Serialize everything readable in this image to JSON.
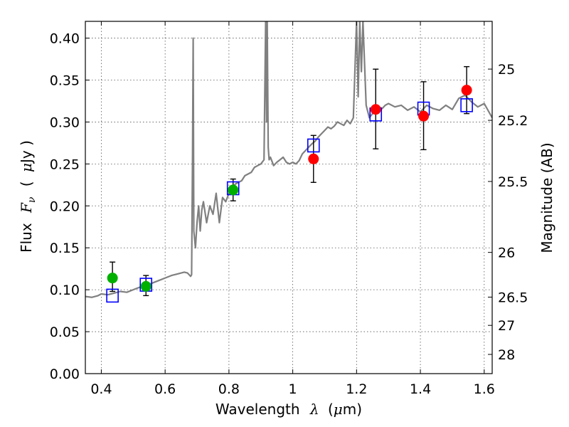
{
  "chart_data": {
    "type": "scatter",
    "xlabel_text": "Wavelength",
    "xlabel_symbol": "λ",
    "xlabel_unit_open": "(",
    "xlabel_unit_mu": "μ",
    "xlabel_unit_rest": "m)",
    "ylabel_text": "Flux",
    "ylabel_symbol": "F",
    "ylabel_sub": "ν",
    "ylabel_unit_open": "(",
    "ylabel_unit_mu": "μ",
    "ylabel_unit_rest": "Jy )",
    "y2label": "Magnitude (AB)",
    "xlim": [
      0.35,
      1.625
    ],
    "ylim": [
      0.0,
      0.42
    ],
    "grid": true,
    "x_ticks": [
      {
        "v": 0.4,
        "label": "0.4"
      },
      {
        "v": 0.6,
        "label": "0.6"
      },
      {
        "v": 0.8,
        "label": "0.8"
      },
      {
        "v": 1.0,
        "label": "1"
      },
      {
        "v": 1.2,
        "label": "1.2"
      },
      {
        "v": 1.4,
        "label": "1.4"
      },
      {
        "v": 1.6,
        "label": "1.6"
      }
    ],
    "y_ticks": [
      {
        "v": 0.0,
        "label": "0.00"
      },
      {
        "v": 0.05,
        "label": "0.05"
      },
      {
        "v": 0.1,
        "label": "0.10"
      },
      {
        "v": 0.15,
        "label": "0.15"
      },
      {
        "v": 0.2,
        "label": "0.20"
      },
      {
        "v": 0.25,
        "label": "0.25"
      },
      {
        "v": 0.3,
        "label": "0.30"
      },
      {
        "v": 0.35,
        "label": "0.35"
      },
      {
        "v": 0.4,
        "label": "0.40"
      }
    ],
    "y2_ticks": [
      {
        "mag": 25,
        "label": "25"
      },
      {
        "mag": 25.2,
        "label": "25.2"
      },
      {
        "mag": 25.5,
        "label": "25.5"
      },
      {
        "mag": 26,
        "label": "26"
      },
      {
        "mag": 26.5,
        "label": "26.5"
      },
      {
        "mag": 27,
        "label": "27"
      },
      {
        "mag": 28,
        "label": "28"
      }
    ],
    "colors": {
      "spectrum": "#808080",
      "green_points": "#00b000",
      "red_points": "#ff0000",
      "model_boxes": "#0000ff",
      "errorbars": "#000000",
      "grid": "#555555"
    },
    "series": [
      {
        "name": "model spectrum",
        "kind": "line",
        "x": [
          0.35,
          0.37,
          0.39,
          0.4,
          0.42,
          0.44,
          0.46,
          0.48,
          0.5,
          0.52,
          0.54,
          0.56,
          0.58,
          0.6,
          0.62,
          0.64,
          0.66,
          0.67,
          0.675,
          0.68,
          0.683,
          0.686,
          0.688,
          0.69,
          0.695,
          0.7,
          0.705,
          0.71,
          0.715,
          0.72,
          0.73,
          0.74,
          0.75,
          0.76,
          0.77,
          0.78,
          0.79,
          0.8,
          0.81,
          0.82,
          0.83,
          0.84,
          0.85,
          0.86,
          0.87,
          0.88,
          0.89,
          0.9,
          0.91,
          0.915,
          0.918,
          0.92,
          0.923,
          0.926,
          0.93,
          0.94,
          0.95,
          0.96,
          0.97,
          0.98,
          0.99,
          1.0,
          1.01,
          1.02,
          1.03,
          1.04,
          1.05,
          1.06,
          1.07,
          1.08,
          1.09,
          1.1,
          1.11,
          1.12,
          1.13,
          1.14,
          1.15,
          1.16,
          1.17,
          1.18,
          1.19,
          1.2,
          1.205,
          1.21,
          1.215,
          1.22,
          1.23,
          1.24,
          1.25,
          1.26,
          1.27,
          1.28,
          1.29,
          1.3,
          1.32,
          1.34,
          1.36,
          1.38,
          1.4,
          1.42,
          1.44,
          1.46,
          1.48,
          1.5,
          1.52,
          1.54,
          1.56,
          1.58,
          1.6,
          1.625
        ],
        "y": [
          0.092,
          0.091,
          0.093,
          0.095,
          0.094,
          0.096,
          0.098,
          0.097,
          0.1,
          0.103,
          0.105,
          0.108,
          0.111,
          0.114,
          0.117,
          0.119,
          0.121,
          0.12,
          0.118,
          0.116,
          0.118,
          0.26,
          0.4,
          0.17,
          0.15,
          0.18,
          0.2,
          0.17,
          0.195,
          0.205,
          0.18,
          0.2,
          0.19,
          0.215,
          0.18,
          0.21,
          0.205,
          0.215,
          0.222,
          0.226,
          0.228,
          0.23,
          0.236,
          0.238,
          0.24,
          0.246,
          0.248,
          0.25,
          0.255,
          0.42,
          0.3,
          0.42,
          0.27,
          0.255,
          0.258,
          0.248,
          0.252,
          0.255,
          0.258,
          0.252,
          0.25,
          0.252,
          0.25,
          0.254,
          0.262,
          0.266,
          0.27,
          0.274,
          0.277,
          0.282,
          0.286,
          0.29,
          0.294,
          0.292,
          0.295,
          0.3,
          0.298,
          0.296,
          0.302,
          0.298,
          0.305,
          0.42,
          0.33,
          0.42,
          0.36,
          0.42,
          0.32,
          0.305,
          0.31,
          0.312,
          0.318,
          0.316,
          0.32,
          0.322,
          0.318,
          0.32,
          0.314,
          0.318,
          0.312,
          0.32,
          0.316,
          0.314,
          0.32,
          0.315,
          0.328,
          0.332,
          0.324,
          0.318,
          0.322,
          0.305
        ]
      },
      {
        "name": "green photometry",
        "kind": "points",
        "points": [
          {
            "x": 0.435,
            "y": 0.114,
            "lo": 0.098,
            "hi": 0.133
          },
          {
            "x": 0.54,
            "y": 0.104,
            "lo": 0.093,
            "hi": 0.117
          },
          {
            "x": 0.813,
            "y": 0.219,
            "lo": 0.206,
            "hi": 0.232
          }
        ]
      },
      {
        "name": "red photometry",
        "kind": "points",
        "points": [
          {
            "x": 1.065,
            "y": 0.256,
            "lo": 0.228,
            "hi": 0.284
          },
          {
            "x": 1.26,
            "y": 0.315,
            "lo": 0.268,
            "hi": 0.363
          },
          {
            "x": 1.41,
            "y": 0.307,
            "lo": 0.267,
            "hi": 0.348
          },
          {
            "x": 1.545,
            "y": 0.338,
            "lo": 0.31,
            "hi": 0.366
          }
        ]
      },
      {
        "name": "synthetic photometry",
        "kind": "boxes",
        "points": [
          {
            "x": 0.435,
            "y": 0.093
          },
          {
            "x": 0.54,
            "y": 0.106
          },
          {
            "x": 0.813,
            "y": 0.221
          },
          {
            "x": 1.065,
            "y": 0.272
          },
          {
            "x": 1.26,
            "y": 0.309
          },
          {
            "x": 1.41,
            "y": 0.316
          },
          {
            "x": 1.545,
            "y": 0.32
          }
        ]
      }
    ]
  }
}
